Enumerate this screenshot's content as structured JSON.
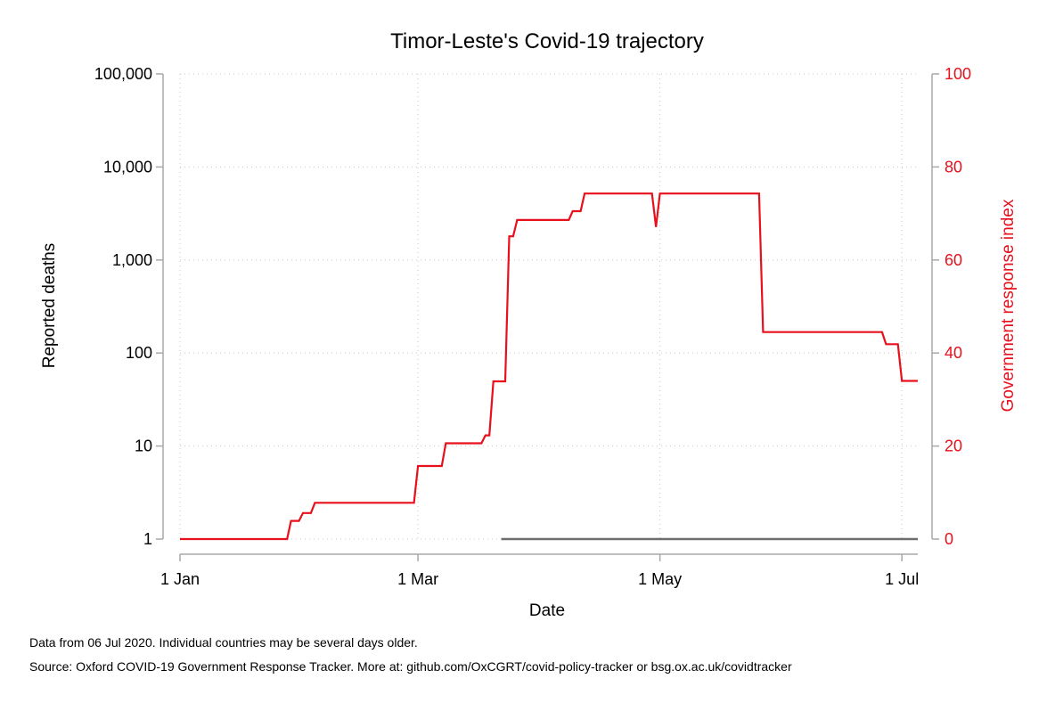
{
  "chart_data": {
    "type": "line",
    "title": "Timor-Leste's Covid-19 trajectory",
    "xlabel": "Date",
    "ylabel": "Reported deaths",
    "y2label": "Government response index",
    "x_range": [
      "2020-01-01",
      "2020-07-05"
    ],
    "x_ticks": [
      {
        "date": "2020-01-01",
        "label": "1 Jan"
      },
      {
        "date": "2020-03-01",
        "label": "1 Mar"
      },
      {
        "date": "2020-05-01",
        "label": "1 May"
      },
      {
        "date": "2020-07-01",
        "label": "1 Jul"
      }
    ],
    "y_scale": "log",
    "ylim": [
      1,
      100000
    ],
    "y_ticks": [
      {
        "value": 1,
        "label": "1"
      },
      {
        "value": 10,
        "label": "10"
      },
      {
        "value": 100,
        "label": "100"
      },
      {
        "value": 1000,
        "label": "1,000"
      },
      {
        "value": 10000,
        "label": "10,000"
      },
      {
        "value": 100000,
        "label": "100,000"
      }
    ],
    "y2lim": [
      0,
      100
    ],
    "y2_ticks": [
      {
        "value": 0,
        "label": "0"
      },
      {
        "value": 20,
        "label": "20"
      },
      {
        "value": 40,
        "label": "40"
      },
      {
        "value": 60,
        "label": "60"
      },
      {
        "value": 80,
        "label": "80"
      },
      {
        "value": 100,
        "label": "100"
      }
    ],
    "grid": true,
    "series": [
      {
        "axis": "left",
        "color": "#6e6e6e",
        "points": [
          {
            "x": "2020-03-22",
            "y": 1
          },
          {
            "x": "2020-07-05",
            "y": 1
          }
        ]
      },
      {
        "axis": "right",
        "color": "#e8101c",
        "points": [
          {
            "x": "2020-01-01",
            "y": 0
          },
          {
            "x": "2020-01-28",
            "y": 0
          },
          {
            "x": "2020-01-29",
            "y": 3.9
          },
          {
            "x": "2020-01-31",
            "y": 3.9
          },
          {
            "x": "2020-02-01",
            "y": 5.6
          },
          {
            "x": "2020-02-03",
            "y": 5.6
          },
          {
            "x": "2020-02-04",
            "y": 7.8
          },
          {
            "x": "2020-02-29",
            "y": 7.8
          },
          {
            "x": "2020-03-01",
            "y": 15.7
          },
          {
            "x": "2020-03-07",
            "y": 15.7
          },
          {
            "x": "2020-03-08",
            "y": 20.6
          },
          {
            "x": "2020-03-17",
            "y": 20.6
          },
          {
            "x": "2020-03-18",
            "y": 22.3
          },
          {
            "x": "2020-03-19",
            "y": 22.3
          },
          {
            "x": "2020-03-20",
            "y": 33.9
          },
          {
            "x": "2020-03-23",
            "y": 33.9
          },
          {
            "x": "2020-03-24",
            "y": 65.1
          },
          {
            "x": "2020-03-25",
            "y": 65.1
          },
          {
            "x": "2020-03-26",
            "y": 68.6
          },
          {
            "x": "2020-04-08",
            "y": 68.6
          },
          {
            "x": "2020-04-09",
            "y": 70.5
          },
          {
            "x": "2020-04-11",
            "y": 70.5
          },
          {
            "x": "2020-04-12",
            "y": 74.3
          },
          {
            "x": "2020-04-29",
            "y": 74.3
          },
          {
            "x": "2020-04-30",
            "y": 67.1
          },
          {
            "x": "2020-05-01",
            "y": 74.3
          },
          {
            "x": "2020-05-26",
            "y": 74.3
          },
          {
            "x": "2020-05-27",
            "y": 44.5
          },
          {
            "x": "2020-06-26",
            "y": 44.5
          },
          {
            "x": "2020-06-27",
            "y": 41.9
          },
          {
            "x": "2020-06-30",
            "y": 41.9
          },
          {
            "x": "2020-07-01",
            "y": 34.0
          },
          {
            "x": "2020-07-05",
            "y": 34.0
          }
        ]
      }
    ],
    "notes": [
      "Data from 06 Jul 2020. Individual countries may be several days older.",
      "Source: Oxford COVID-19 Government Response Tracker. More at: github.com/OxCGRT/covid-policy-tracker or bsg.ox.ac.uk/covidtracker"
    ]
  },
  "colors": {
    "response": "#e8101c",
    "deaths": "#6e6e6e",
    "axis": "#a8a8a8"
  }
}
